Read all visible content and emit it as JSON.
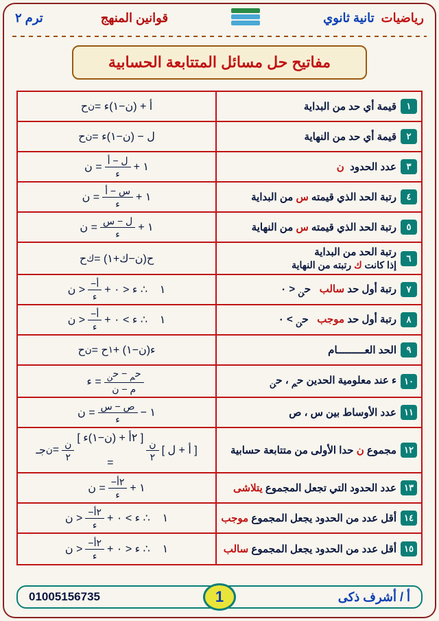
{
  "header": {
    "subject": "رياضيات",
    "grade": "تانية ثانوي",
    "center": "قوانين المنهج",
    "term": "ترم ٢"
  },
  "title": "مفاتيح حل مسائل المتتابعة الحسابية",
  "rows": [
    {
      "num": "١",
      "label_html": "قيمة أي حد من البداية",
      "formula_html": "ح<sub>ن</sub> = أ + (ن−١)ء"
    },
    {
      "num": "٢",
      "label_html": "قيمة أي حد من النهاية",
      "formula_html": "ح<sub>ن</sub> = ل − (ن−١)ء"
    },
    {
      "num": "٣",
      "label_html": "عدد الحدود &nbsp;<span class='red'>ن</span>",
      "formula_html": "ن = <span class='frac'><span class='top'>ل − أ</span><span class='bot'>ء</span></span> + ١"
    },
    {
      "num": "٤",
      "label_html": "رتبة الحد الذي قيمته <span class='red'>س</span> من البداية",
      "formula_html": "ن = <span class='frac'><span class='top'>س − أ</span><span class='bot'>ء</span></span> + ١"
    },
    {
      "num": "٥",
      "label_html": "رتبة الحد الذي قيمته <span class='red'>س</span> من النهاية",
      "formula_html": "ن = <span class='frac'><span class='top'>ل − س</span><span class='bot'>ء</span></span> + ١"
    },
    {
      "num": "٦",
      "label_html": "رتبة الحد من البداية<span class='sub2'>إذا كانت <span class='red'>ك</span> رتبته من النهاية</span>",
      "formula_html": "ح<sub>ك</sub> = ح(ن−ك+١)"
    },
    {
      "num": "٧",
      "label_html": "رتبة أول حد <span class='red'>سالب</span>&nbsp;&nbsp; ح<sub>ن</sub> &lt; ٠",
      "formula_html": "ن &gt; <span class='frac'><span class='top'>−أ</span><span class='bot'>ء</span></span> + ١ &nbsp;&nbsp; ∴ ء &lt; ٠"
    },
    {
      "num": "٨",
      "label_html": "رتبة أول حد <span class='red'>موجب</span>&nbsp;&nbsp; ح<sub>ن</sub> &gt; ٠",
      "formula_html": "ن &gt; <span class='frac'><span class='top'>−أ</span><span class='bot'>ء</span></span> + ١ &nbsp;&nbsp; ∴ ء &gt; ٠"
    },
    {
      "num": "٩",
      "label_html": "الحد العـــــــــام",
      "formula_html": "ح<sub>ن</sub> = ح<sub>١</sub> + (ن−١)ء"
    },
    {
      "num": "١٠",
      "label_html": "ء عند معلومية الحدين ح<sub>م</sub> ، ح<sub>ن</sub>",
      "formula_html": "ء = <span class='frac'><span class='top'>ح<sub>م</sub> − ح<sub>ن</sub></span><span class='bot'>م − ن</span></span>"
    },
    {
      "num": "١١",
      "label_html": "عدد الأوساط بين س ، ص",
      "formula_html": "ن = <span class='frac'><span class='top'>ص − س</span><span class='bot'>ء</span></span> − ١"
    },
    {
      "num": "١٢",
      "label_html": "مجموع <span class='red'>ن</span> حدا الأولى من متتابعة حسابية",
      "formula_html": "جـ<sub>ن</sub> = <span class='frac'><span class='top'>ن</span><span class='bot'>٢</span></span> [ ٢أ + (ن−١)ء ]<br><br>= <span class='frac'><span class='top'>ن</span><span class='bot'>٢</span></span> [ أ + ل ]"
    },
    {
      "num": "١٣",
      "label_html": "عدد الحدود التي تجعل المجموع <span class='red'>يتلاشى</span>",
      "formula_html": "ن = <span class='frac'><span class='top'>−٢أ</span><span class='bot'>ء</span></span> + ١"
    },
    {
      "num": "١٤",
      "label_html": "أقل عدد من الحدود يجعل المجموع <span class='red'>موجب</span>",
      "formula_html": "ن &gt; <span class='frac'><span class='top'>−٢أ</span><span class='bot'>ء</span></span> + ١ &nbsp;&nbsp; ∴ ء &gt; ٠"
    },
    {
      "num": "١٥",
      "label_html": "أقل عدد من الحدود يجعل المجموع <span class='red'>سالب</span>",
      "formula_html": "ن &gt; <span class='frac'><span class='top'>−٢أ</span><span class='bot'>ء</span></span> + ١ &nbsp;&nbsp; ∴ ء &lt; ٠"
    }
  ],
  "footer": {
    "author": "أ / أشرف ذكى",
    "page": "1",
    "phone": "01005156735"
  },
  "colors": {
    "header_icon": [
      "#2a8a46",
      "#4aa8d6",
      "#4aa8d6"
    ]
  }
}
